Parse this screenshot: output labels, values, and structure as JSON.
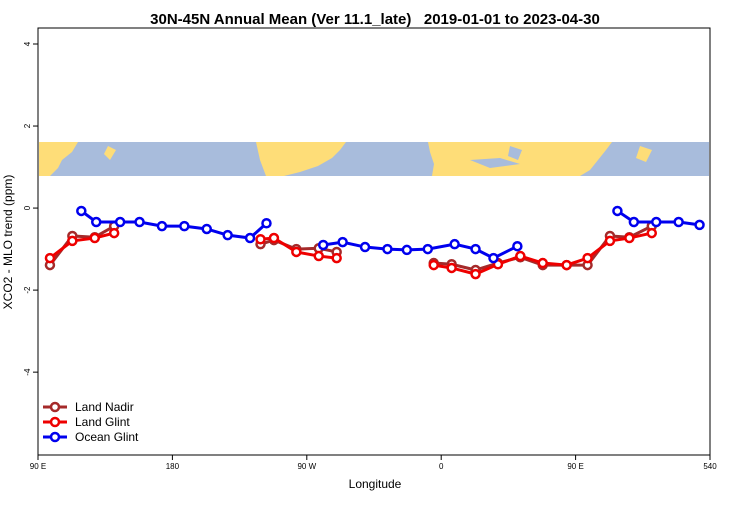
{
  "chart_data": {
    "type": "line",
    "title": "30N-45N Annual Mean (Ver 11.1_late)   2019-01-01 to 2023-04-30",
    "x_label": "Longitude",
    "y_label": "XCO2 - MLO trend (ppm)",
    "xlim": [
      90,
      540
    ],
    "ylim": [
      -6.02,
      4.39
    ],
    "xticks": [
      {
        "value": 90,
        "label": "90 E"
      },
      180,
      {
        "value": 270,
        "label": "90 W"
      },
      {
        "value": 360,
        "label": "0"
      },
      {
        "value": 450,
        "label": "90 E"
      },
      540
    ],
    "yticks": [
      4,
      2,
      0,
      -2,
      -4
    ],
    "legend": "bottom-left",
    "series": [
      {
        "name": "Land Nadir",
        "color": "#a52a2a",
        "x": [
          98,
          113,
          128,
          141,
          null,
          239,
          248,
          263,
          278,
          290,
          null,
          355,
          367,
          383,
          398,
          413,
          428,
          444,
          458,
          473,
          486,
          501
        ],
        "values": [
          -1.39,
          -0.68,
          -0.71,
          -0.44,
          null,
          -0.88,
          -0.78,
          -1.0,
          -0.98,
          -1.07,
          null,
          -1.34,
          -1.37,
          -1.51,
          -1.34,
          -1.2,
          -1.39,
          -1.39,
          -1.39,
          -0.68,
          -0.71,
          -0.44
        ]
      },
      {
        "name": "Land Glint",
        "color": "#ee0000",
        "x": [
          98,
          113,
          128,
          141,
          null,
          239,
          248,
          263,
          278,
          290,
          null,
          355,
          367,
          383,
          398,
          413,
          428,
          444,
          458,
          473,
          486,
          501
        ],
        "values": [
          -1.22,
          -0.8,
          -0.73,
          -0.61,
          null,
          -0.76,
          -0.73,
          -1.07,
          -1.17,
          -1.22,
          null,
          -1.39,
          -1.46,
          -1.61,
          -1.37,
          -1.17,
          -1.34,
          -1.39,
          -1.22,
          -0.8,
          -0.73,
          -0.61
        ]
      },
      {
        "name": "Ocean Glint",
        "color": "#0000ee",
        "x": [
          119,
          129,
          145,
          158,
          173,
          188,
          203,
          217,
          232,
          243,
          null,
          281,
          294,
          309,
          324,
          337,
          351,
          369,
          383,
          395,
          411,
          null,
          478,
          489,
          504,
          519,
          533
        ],
        "values": [
          -0.07,
          -0.34,
          -0.34,
          -0.34,
          -0.44,
          -0.44,
          -0.51,
          -0.66,
          -0.73,
          -0.37,
          null,
          -0.9,
          -0.83,
          -0.95,
          -1.0,
          -1.02,
          -1.0,
          -0.88,
          -1.0,
          -1.22,
          -0.93,
          null,
          -0.07,
          -0.34,
          -0.34,
          -0.34,
          -0.41
        ]
      }
    ]
  }
}
